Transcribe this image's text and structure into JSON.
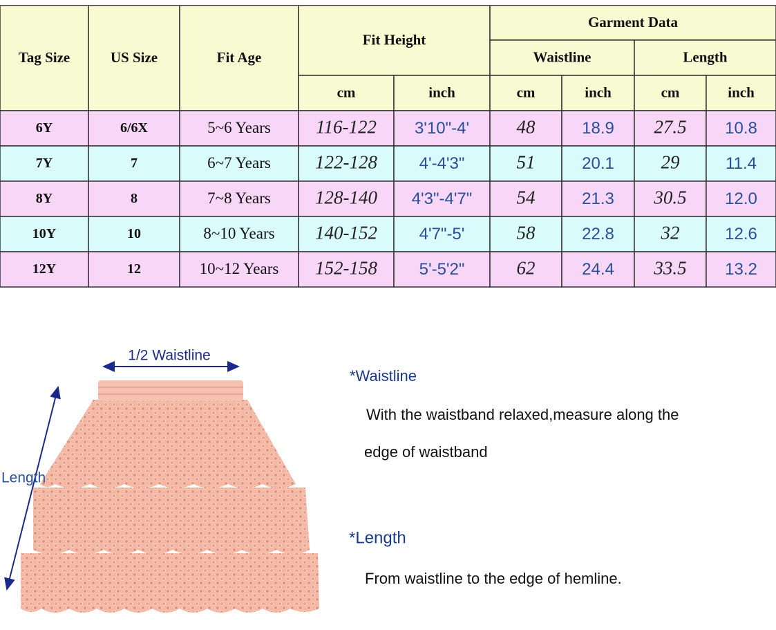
{
  "table": {
    "headers": {
      "tag_size": "Tag Size",
      "us_size": "US Size",
      "fit_age": "Fit Age",
      "fit_height": "Fit Height",
      "garment_data": "Garment Data",
      "waistline": "Waistline",
      "length": "Length",
      "units": [
        "cm",
        "inch",
        "cm",
        "inch",
        "cm",
        "inch"
      ]
    },
    "rows": [
      [
        "6Y",
        "6/6X",
        "5~6 Years",
        "116-122",
        "3'10\"-4'",
        "48",
        "18.9",
        "27.5",
        "10.8"
      ],
      [
        "7Y",
        "7",
        "6~7 Years",
        "122-128",
        "4'-4'3\"",
        "51",
        "20.1",
        "29",
        "11.4"
      ],
      [
        "8Y",
        "8",
        "7~8 Years",
        "128-140",
        "4'3\"-4'7\"",
        "54",
        "21.3",
        "30.5",
        "12.0"
      ],
      [
        "10Y",
        "10",
        "8~10 Years",
        "140-152",
        "4'7\"-5'",
        "58",
        "22.8",
        "32",
        "12.6"
      ],
      [
        "12Y",
        "12",
        "10~12 Years",
        "152-158",
        "5'-5'2\"",
        "62",
        "24.4",
        "33.5",
        "13.2"
      ]
    ]
  },
  "diagram": {
    "waist_label": "1/2 Waistline",
    "length_label": "Length"
  },
  "notes": {
    "waistline_title": "*Waistline",
    "waistline_lines": [
      "With the waistband relaxed,measure along the",
      "edge of waistband"
    ],
    "length_title": "*Length",
    "length_text": "From waistline to the edge of hemline."
  }
}
